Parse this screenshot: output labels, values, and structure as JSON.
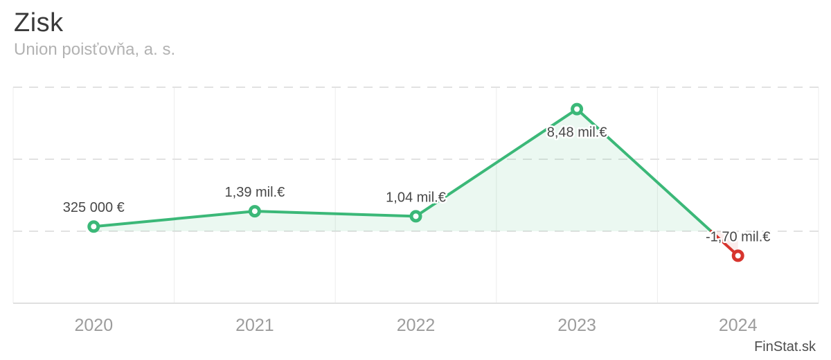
{
  "header": {
    "title": "Zisk",
    "subtitle": "Union poisťovňa, a. s."
  },
  "watermark": "FinStat.sk",
  "chart_data": {
    "type": "line",
    "title": "Zisk",
    "subtitle": "Union poisťovňa, a. s.",
    "categories": [
      "2020",
      "2021",
      "2022",
      "2023",
      "2024"
    ],
    "series": [
      {
        "name": "Zisk",
        "values_eur": [
          325000,
          1390000,
          1040000,
          8480000,
          -1700000
        ]
      }
    ],
    "point_labels": [
      "325 000 €",
      "1,39 mil.€",
      "1,04 mil.€",
      "8,48 mil.€",
      "-1,70 mil.€"
    ],
    "label_positions": [
      "above",
      "above",
      "above",
      "below",
      "above"
    ],
    "xlabel": "",
    "ylabel": "",
    "ylim_eur": [
      -5000000,
      10000000
    ],
    "gridlines_eur": [
      10000000,
      5000000,
      0
    ],
    "grid": "horizontal dashed, vertical solid column separators, no y-axis labels",
    "legend": "none",
    "colors": {
      "positive_line": "#3bb878",
      "negative_line": "#d7352e",
      "area_positive": "rgba(59,184,120,0.10)",
      "area_negative": "rgba(215,53,46,0.09)",
      "gridline_dashed": "#e2e2e2",
      "gridline_vertical": "#ececec",
      "axis_border": "#e0e0e0",
      "data_label": "#474747",
      "axis_label": "#9c9c9c"
    }
  }
}
